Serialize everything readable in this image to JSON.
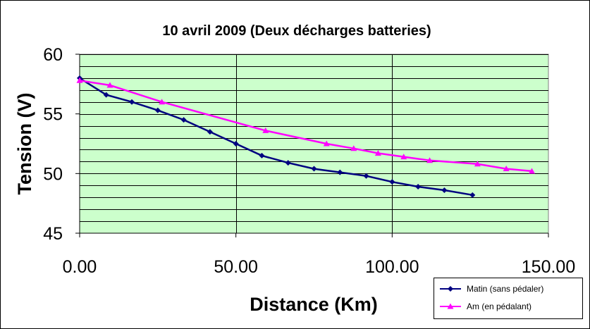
{
  "chart_data": {
    "type": "line",
    "title": "10 avril 2009 (Deux décharges batteries)",
    "xlabel": "Distance (Km)",
    "ylabel": "Tension (V)",
    "xlim": [
      0,
      150
    ],
    "ylim": [
      45,
      60
    ],
    "x_ticks": [
      0,
      50,
      100,
      150
    ],
    "x_tick_labels": [
      "0.00",
      "50.00",
      "100.00",
      "150.00"
    ],
    "y_ticks": [
      45,
      50,
      55,
      60
    ],
    "y_tick_labels": [
      "45",
      "50",
      "55",
      "60"
    ],
    "y_minor_step": 1,
    "grid": true,
    "plot_background": "#ccffcc",
    "legend_position": "bottom-right",
    "series": [
      {
        "name": "Matin (sans pédaler)",
        "color": "#000080",
        "marker": "diamond",
        "x": [
          0,
          8.5,
          16.7,
          25,
          33.3,
          41.7,
          50,
          58.3,
          66.7,
          75,
          83.3,
          91.7,
          100,
          108.3,
          116.7,
          125.7
        ],
        "y": [
          58.0,
          56.6,
          56.0,
          55.3,
          54.5,
          53.5,
          52.5,
          51.5,
          50.9,
          50.4,
          50.1,
          49.8,
          49.3,
          48.9,
          48.6,
          48.2
        ]
      },
      {
        "name": "Am (en pédalant)",
        "color": "#ff00ff",
        "marker": "triangle",
        "x": [
          0,
          9.7,
          26.3,
          59.5,
          79,
          87.7,
          95.5,
          103.7,
          112,
          127.3,
          136.5,
          144.7
        ],
        "y": [
          57.8,
          57.4,
          56.0,
          53.6,
          52.5,
          52.1,
          51.7,
          51.4,
          51.1,
          50.8,
          50.4,
          50.2
        ]
      }
    ]
  }
}
